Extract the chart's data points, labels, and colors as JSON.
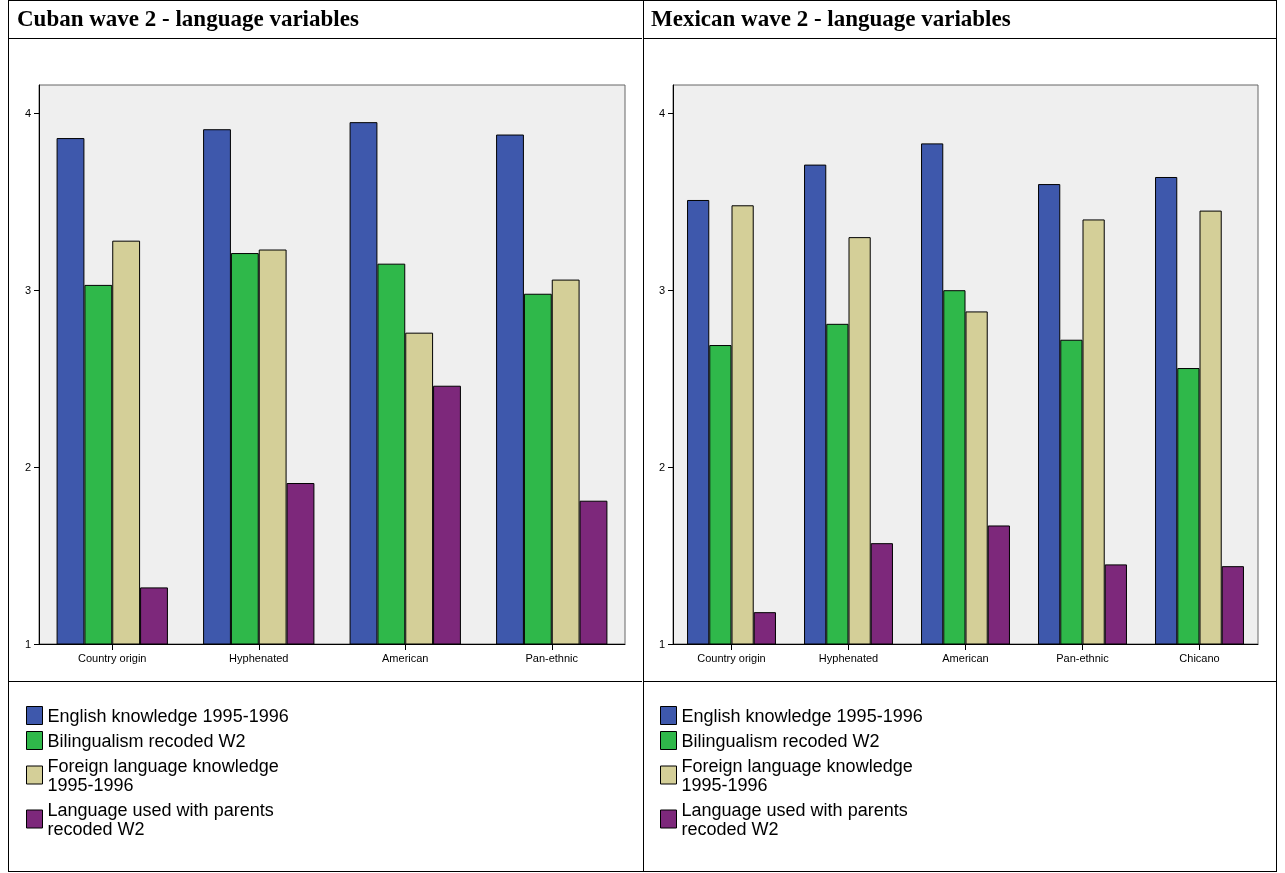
{
  "chart_data": [
    {
      "type": "bar",
      "title": "Cuban wave 2 - language variables",
      "categories": [
        "Country origin",
        "Hyphenated",
        "American",
        "Pan-ethnic"
      ],
      "series": [
        {
          "name": "English knowledge 1995-1996",
          "color": "#3e58ac",
          "values": [
            3.86,
            3.91,
            3.95,
            3.88
          ]
        },
        {
          "name": "Bilingualism recoded W2",
          "color": "#2fb84a",
          "values": [
            3.03,
            3.21,
            3.15,
            2.98
          ]
        },
        {
          "name": "Foreign language knowledge 1995-1996",
          "color": "#d4cf98",
          "values": [
            3.28,
            3.23,
            2.76,
            3.06
          ]
        },
        {
          "name": "Language used with parents recoded W2",
          "color": "#7d287b",
          "values": [
            1.32,
            1.91,
            2.46,
            1.81
          ]
        }
      ],
      "ylim": [
        1,
        4.16
      ],
      "yticks": [
        1,
        2,
        3,
        4
      ],
      "grid": false,
      "legend": "bottom left"
    },
    {
      "type": "bar",
      "title": "Mexican wave 2 - language variables",
      "categories": [
        "Country origin",
        "Hyphenated",
        "American",
        "Pan-ethnic",
        "Chicano"
      ],
      "series": [
        {
          "name": "English knowledge 1995-1996",
          "color": "#3e58ac",
          "values": [
            3.51,
            3.71,
            3.83,
            3.6,
            3.64
          ]
        },
        {
          "name": "Bilingualism recoded W2",
          "color": "#2fb84a",
          "values": [
            2.69,
            2.81,
            3.0,
            2.72,
            2.56
          ]
        },
        {
          "name": "Foreign language knowledge 1995-1996",
          "color": "#d4cf98",
          "values": [
            3.48,
            3.3,
            2.88,
            3.4,
            3.45
          ]
        },
        {
          "name": "Language used with parents recoded W2",
          "color": "#7d287b",
          "values": [
            1.18,
            1.57,
            1.67,
            1.45,
            1.44
          ]
        }
      ],
      "ylim": [
        1,
        4.16
      ],
      "yticks": [
        1,
        2,
        3,
        4
      ],
      "grid": false,
      "legend": "bottom left"
    }
  ]
}
